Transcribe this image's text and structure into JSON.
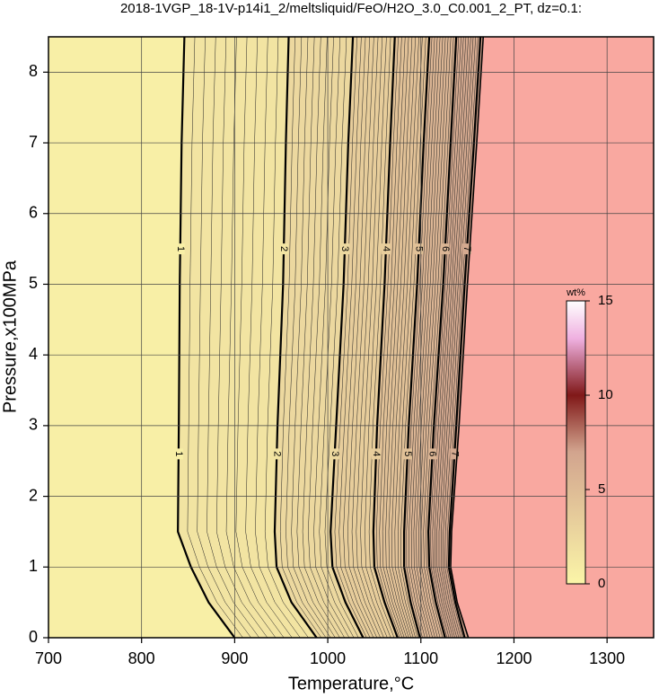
{
  "chart_data": {
    "type": "contour",
    "title": "2018-1VGP_18-1V-p14i1_2/meltsliquid/FeO/H2O_3.0_C0.001_2_PT, dz=0.1:",
    "x_label": "Temperature,°C",
    "y_label": "Pressure,x100MPa",
    "xlim": [
      700,
      1350
    ],
    "xticks": [
      700,
      800,
      900,
      1000,
      1100,
      1200,
      1300
    ],
    "ylim": [
      0,
      8.5
    ],
    "yticks": [
      0,
      1,
      2,
      3,
      4,
      5,
      6,
      7,
      8
    ],
    "grid": true,
    "contours": [
      {
        "level": 1,
        "x": [
          900,
          872,
          853,
          839,
          840,
          841,
          843,
          846
        ],
        "y": [
          0,
          0.5,
          1,
          1.5,
          3,
          5,
          7,
          8.5
        ]
      },
      {
        "level": 2,
        "x": [
          988,
          961,
          945,
          943,
          946,
          952,
          955,
          958
        ],
        "y": [
          0,
          0.5,
          1,
          1.5,
          3,
          5,
          7,
          8.5
        ]
      },
      {
        "level": 3,
        "x": [
          1038,
          1019,
          1005,
          1003,
          1009,
          1017,
          1022,
          1027
        ],
        "y": [
          0,
          0.5,
          1,
          1.5,
          3,
          5,
          7,
          8.5
        ]
      },
      {
        "level": 4,
        "x": [
          1075,
          1061,
          1050,
          1049,
          1053,
          1061,
          1067,
          1072
        ],
        "y": [
          0,
          0.5,
          1,
          1.5,
          3,
          5,
          7,
          8.5
        ]
      },
      {
        "level": 5,
        "x": [
          1099,
          1089,
          1082,
          1082,
          1087,
          1096,
          1103,
          1109
        ],
        "y": [
          0,
          0.5,
          1,
          1.5,
          3,
          5,
          7,
          8.5
        ]
      },
      {
        "level": 6,
        "x": [
          1126,
          1116,
          1109,
          1108,
          1114,
          1124,
          1132,
          1138
        ],
        "y": [
          0,
          0.5,
          1,
          1.5,
          3,
          5,
          7,
          8.5
        ]
      },
      {
        "level": 7,
        "x": [
          1147,
          1137,
          1130,
          1131,
          1138,
          1147,
          1157,
          1164
        ],
        "y": [
          0,
          0.5,
          1,
          1.5,
          3,
          5,
          7,
          8.5
        ]
      }
    ],
    "liquidus": {
      "x": [
        1151,
        1139,
        1132,
        1133,
        1141,
        1150,
        1160,
        1167
      ],
      "y": [
        0,
        0.5,
        1,
        1.5,
        3,
        5,
        7,
        8.5
      ]
    },
    "liquid_color": "#f9a8a0",
    "label_pressures": [
      5.5,
      2.6
    ],
    "colormap": [
      [
        0,
        "#fbf5a8"
      ],
      [
        7,
        "#d2a48e"
      ],
      [
        10,
        "#801818"
      ],
      [
        13,
        "#efb0e0"
      ],
      [
        15,
        "#ffffff"
      ]
    ],
    "colorbar": {
      "label": "wt%",
      "lim": [
        0,
        15
      ],
      "ticks": [
        0,
        5,
        10,
        15
      ]
    }
  }
}
